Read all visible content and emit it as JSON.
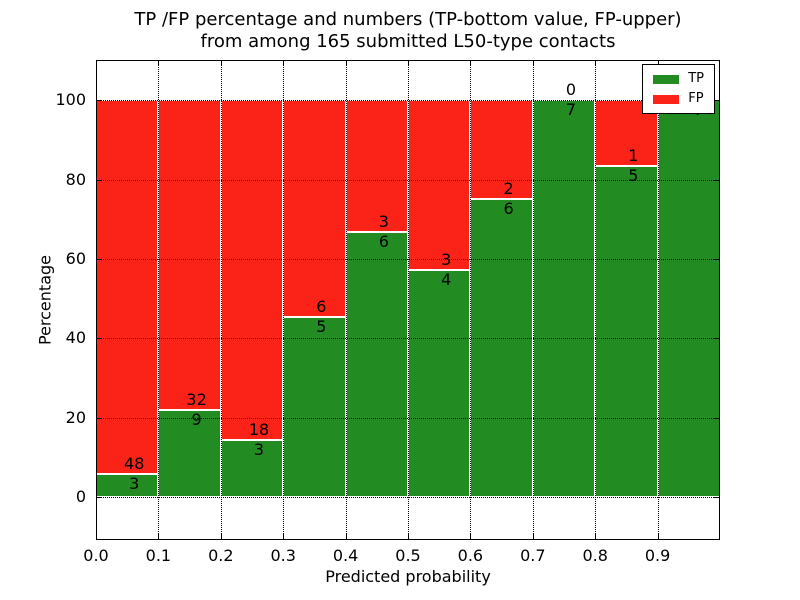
{
  "chart_data": {
    "type": "bar",
    "stacked": true,
    "title_lines": [
      "TP /FP percentage and numbers (TP-bottom value, FP-upper)",
      "from among 165 submitted L50-type contacts"
    ],
    "xlabel": "Predicted probability",
    "ylabel": "Percentage",
    "total_submitted": 165,
    "bin_edges": [
      0.0,
      0.1,
      0.2,
      0.3,
      0.4,
      0.5,
      0.6,
      0.7,
      0.8,
      0.9,
      1.0
    ],
    "xtick_labels": [
      "0.0",
      "0.1",
      "0.2",
      "0.3",
      "0.4",
      "0.5",
      "0.6",
      "0.7",
      "0.8",
      "0.9"
    ],
    "yticks": [
      0,
      20,
      40,
      60,
      80,
      100
    ],
    "xlim": [
      0.0,
      1.0
    ],
    "ylim": [
      -10.8,
      110.1
    ],
    "grid": "dotted, both axes, drawn above bars",
    "series": [
      {
        "name": "TP",
        "color": "#228b22",
        "counts": [
          3,
          9,
          3,
          5,
          6,
          4,
          6,
          7,
          5,
          4
        ]
      },
      {
        "name": "FP",
        "color": "#fb2318",
        "counts": [
          48,
          32,
          18,
          6,
          3,
          3,
          2,
          0,
          1,
          0
        ]
      }
    ],
    "tp_percent": [
      5.88,
      21.95,
      14.29,
      45.45,
      66.67,
      57.14,
      75.0,
      100.0,
      83.33,
      100.0
    ],
    "legend": {
      "position": "upper right",
      "entries": [
        {
          "label": "TP",
          "color": "#228b22"
        },
        {
          "label": "FP",
          "color": "#fb2318"
        }
      ]
    }
  }
}
